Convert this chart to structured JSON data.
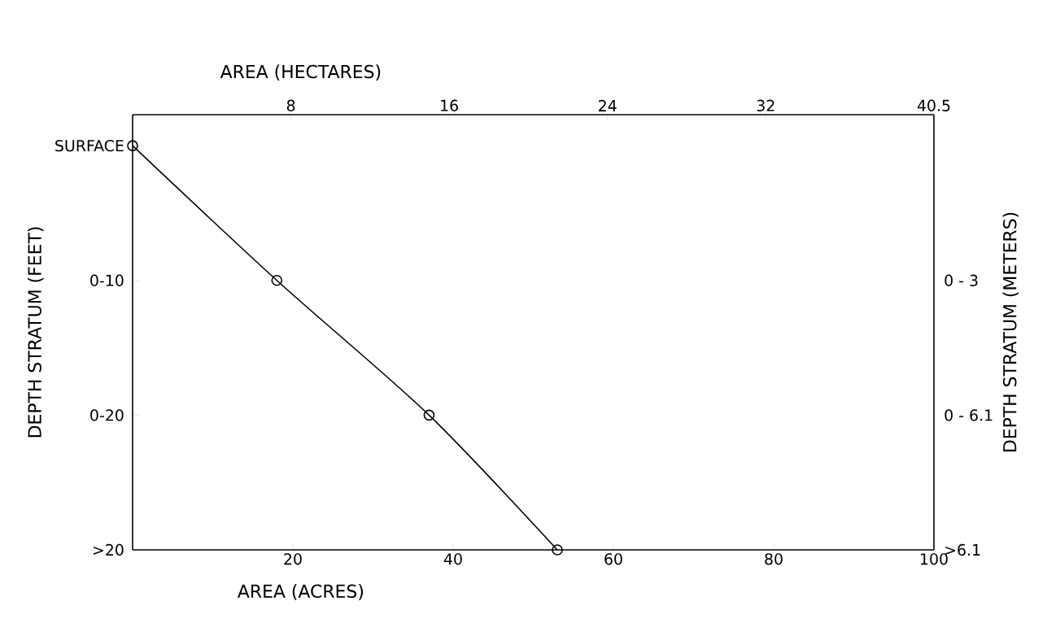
{
  "chart_data": {
    "type": "line",
    "orientation": "horizontal",
    "xlabel": "AREA (ACRES)",
    "x2label": "AREA (HECTARES)",
    "ylabel": "DEPTH STRATUM (FEET)",
    "y2label": "DEPTH STRATUM (METERS)",
    "categories": [
      "SURFACE",
      "0-10",
      "0-20",
      ">20"
    ],
    "y2_categories": [
      null,
      "0 - 3",
      "0 - 6.1",
      ">6.1"
    ],
    "series": [
      {
        "color": "#000000",
        "values": [
          0,
          18,
          37,
          53
        ]
      }
    ],
    "marker": "circle",
    "xlim": [
      0,
      100
    ],
    "xticks": [
      20,
      40,
      60,
      80,
      100
    ],
    "x2lim": [
      0,
      40.5
    ],
    "x2ticks": [
      8,
      16,
      24,
      32,
      40.5
    ]
  }
}
